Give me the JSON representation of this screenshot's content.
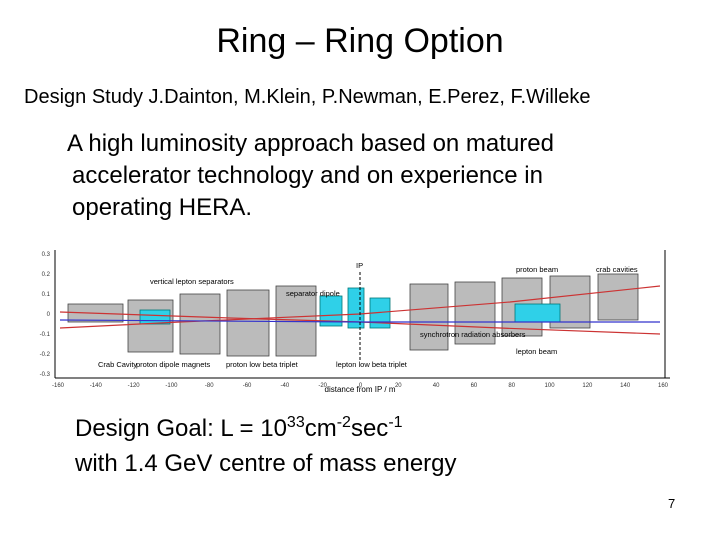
{
  "slide": {
    "title": "Ring – Ring Option",
    "subtitle": "Design Study J.Dainton, M.Klein, P.Newman, E.Perez, F.Willeke",
    "body": [
      "A high luminosity approach based on matured",
      "accelerator technology and on experience in",
      "operating HERA."
    ],
    "diagram": {
      "labels": [
        "IP",
        "proton beam",
        "crab cavities",
        "vertical lepton separators",
        "separator dipole",
        "synchrotron radiation absorbers",
        "lepton beam",
        "Crab Cavity",
        "proton dipole magnets",
        "proton low beta triplet",
        "lepton low beta triplet"
      ],
      "x_axis_label": "distance from IP / m",
      "x_ticks": [
        "-160",
        "-140",
        "-120",
        "-100",
        "-80",
        "-60",
        "-40",
        "-20",
        "0",
        "20",
        "40",
        "60",
        "80",
        "100",
        "120",
        "140",
        "160"
      ],
      "y_ticks": [
        "0.3",
        "0.2",
        "0.1",
        "0",
        "-0.1",
        "-0.2",
        "-0.3"
      ]
    },
    "goal": {
      "prefix": "Design Goal: L = 10",
      "exp1": "33",
      "mid1": "cm",
      "exp2": "-2",
      "mid2": "sec",
      "exp3": "-1",
      "line2": "with 1.4 GeV centre of mass energy"
    },
    "page_number": "7"
  }
}
